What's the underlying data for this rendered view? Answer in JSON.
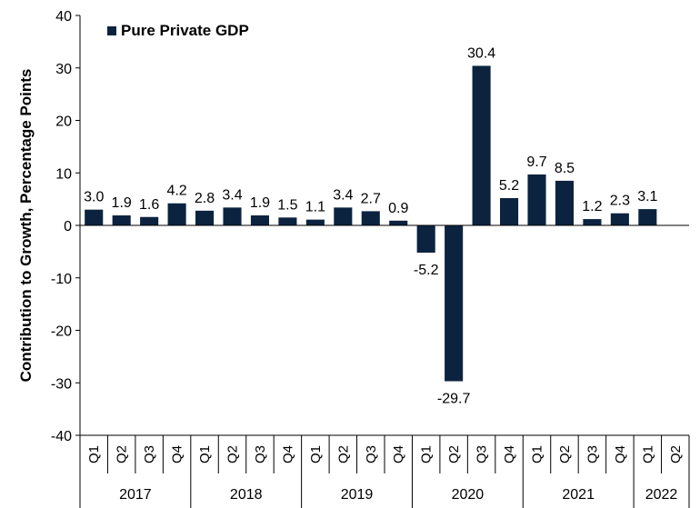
{
  "chart_data": {
    "type": "bar",
    "ylabel": "Contribution to Growth, Percentage Points",
    "ylim": [
      -40,
      40
    ],
    "yticks": [
      40,
      30,
      20,
      10,
      0,
      -10,
      -20,
      -30,
      -40
    ],
    "grid": false,
    "legend_position": "top-left",
    "bar_color": "#0c2340",
    "series": [
      {
        "name": "Pure Private GDP",
        "values": [
          3.0,
          1.9,
          1.6,
          4.2,
          2.8,
          3.4,
          1.9,
          1.5,
          1.1,
          3.4,
          2.7,
          0.9,
          -5.2,
          -29.7,
          30.4,
          5.2,
          9.7,
          8.5,
          1.2,
          2.3,
          3.1,
          null
        ]
      }
    ],
    "data_labels": [
      "3.0",
      "1.9",
      "1.6",
      "4.2",
      "2.8",
      "3.4",
      "1.9",
      "1.5",
      "1.1",
      "3.4",
      "2.7",
      "0.9",
      "-5.2",
      "-29.7",
      "30.4",
      "5.2",
      "9.7",
      "8.5",
      "1.2",
      "2.3",
      "3.1",
      ""
    ],
    "categories": [
      "Q1",
      "Q2",
      "Q3",
      "Q4",
      "Q1",
      "Q2",
      "Q3",
      "Q4",
      "Q1",
      "Q2",
      "Q3",
      "Q4",
      "Q1",
      "Q2",
      "Q3",
      "Q4",
      "Q1",
      "Q2",
      "Q3",
      "Q4",
      "Q1",
      "Q2"
    ],
    "year_groups": [
      {
        "label": "2017",
        "count": 4
      },
      {
        "label": "2018",
        "count": 4
      },
      {
        "label": "2019",
        "count": 4
      },
      {
        "label": "2020",
        "count": 4
      },
      {
        "label": "2021",
        "count": 4
      },
      {
        "label": "2022",
        "count": 2
      }
    ]
  }
}
